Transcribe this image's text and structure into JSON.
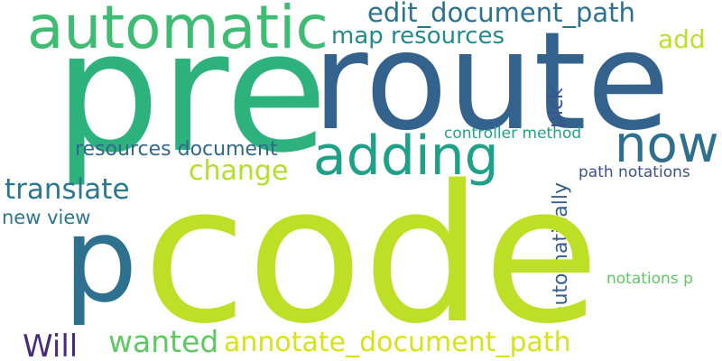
{
  "words": {
    "pre": "pre",
    "route": "route",
    "code": "code",
    "automatic": "automatic",
    "edit_document_path": "edit_document_path",
    "map_resources": "map resources",
    "add": "add",
    "adding": "adding",
    "now": "now",
    "pick": "pick",
    "automatically": "automatically",
    "controller_method": "controller method",
    "resources_document": "resources document",
    "change": "change",
    "path_notations": "path notations",
    "translate": "translate",
    "new_view": "new view",
    "p": "p",
    "notations_p": "notations p",
    "will": "Will",
    "wanted": "wanted",
    "annotate_document_path": "annotate_document_path"
  },
  "colors": {
    "pre": "#2db27d",
    "route": "#33638d",
    "code": "#bddf26",
    "automatic": "#3fbc73",
    "edit_document_path": "#2c728e",
    "map_resources": "#238a8d",
    "add": "#c2df23",
    "adding": "#1fa088",
    "now": "#2e6f8e",
    "pick": "#3b528b",
    "automatically": "#355f8d",
    "controller_method": "#20a386",
    "resources_document": "#31688e",
    "change": "#b5de2b",
    "path_notations": "#3b528b",
    "translate": "#2a788e",
    "new_view": "#2a768e",
    "p": "#2d718e",
    "notations_p": "#5ec962",
    "will": "#472c7a",
    "wanted": "#5ec962",
    "annotate_document_path": "#d8e219"
  }
}
